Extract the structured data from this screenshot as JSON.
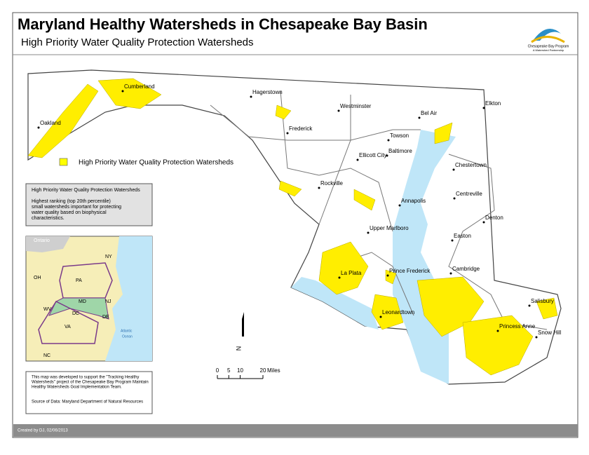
{
  "header": {
    "title": "Maryland Healthy Watersheds in Chesapeake Bay Basin",
    "subtitle": "High Priority Water Quality Protection Watersheds"
  },
  "logo": {
    "name": "Chesapeake Bay Program",
    "tagline": "A Watershed Partnership"
  },
  "legend": {
    "label": "High Priority Water Quality Protection Watersheds",
    "color": "#ffff00"
  },
  "info_box": {
    "title": "High Priority Water Quality Protection Watersheds",
    "lines": [
      "Highest ranking (top 20th percentile)",
      "small watersheds important for protecting",
      "water quality based on biophysical",
      "characteristics."
    ]
  },
  "map": {
    "cities": [
      "Hagerstown",
      "Cumberland",
      "Oakland",
      "Frederick",
      "Westminster",
      "Bel Air",
      "Elkton",
      "Towson",
      "Baltimore",
      "Ellicott City",
      "Chestertown",
      "Rockville",
      "Annapolis",
      "Centreville",
      "Denton",
      "Upper Marlboro",
      "Easton",
      "Cambridge",
      "La Plata",
      "Prince Frederick",
      "Leonardtown",
      "Salisbury",
      "Princess Anne",
      "Snow Hill"
    ]
  },
  "inset": {
    "labels": [
      "Ontario",
      "NY",
      "OH",
      "PA",
      "NJ",
      "MD",
      "DE",
      "DC",
      "WV",
      "VA",
      "NC",
      "Atlantic",
      "Ocean"
    ]
  },
  "scale_bar": {
    "ticks": [
      0,
      5,
      10,
      20
    ],
    "unit": "Miles"
  },
  "north": "N",
  "credits": {
    "note": [
      "This map was developed to support the \"Tracking Healthy",
      "Watersheds\" project of the Chesapeake Bay Program Maintain",
      "Healthy Watersheds Goal Implementation Team."
    ],
    "source": "Source of Data:  Maryland Department of Natural Resources"
  },
  "footer": "Created by DJ, 02/06/2013"
}
